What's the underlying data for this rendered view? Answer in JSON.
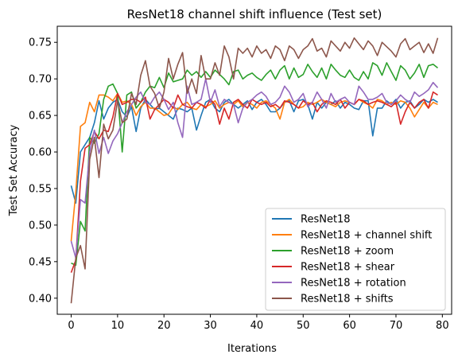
{
  "chart_data": {
    "type": "line",
    "title": "ResNet18 channel shift influence (Test set)",
    "xlabel": "Iterations",
    "ylabel": "Test Set Accuracy",
    "xlim": [
      -3,
      82
    ],
    "ylim": [
      0.378,
      0.772
    ],
    "xticks": [
      0,
      10,
      20,
      30,
      40,
      50,
      60,
      70,
      80
    ],
    "yticks": [
      0.4,
      0.45,
      0.5,
      0.55,
      0.6,
      0.65,
      0.7,
      0.75
    ],
    "grid": false,
    "legend_position": "lower right",
    "x": [
      0,
      1,
      2,
      3,
      4,
      5,
      6,
      7,
      8,
      9,
      10,
      11,
      12,
      13,
      14,
      15,
      16,
      17,
      18,
      19,
      20,
      21,
      22,
      23,
      24,
      25,
      26,
      27,
      28,
      29,
      30,
      31,
      32,
      33,
      34,
      35,
      36,
      37,
      38,
      39,
      40,
      41,
      42,
      43,
      44,
      45,
      46,
      47,
      48,
      49,
      50,
      51,
      52,
      53,
      54,
      55,
      56,
      57,
      58,
      59,
      60,
      61,
      62,
      63,
      64,
      65,
      66,
      67,
      68,
      69,
      70,
      71,
      72,
      73,
      74,
      75,
      76,
      77,
      78,
      79
    ],
    "series": [
      {
        "name": "ResNet18",
        "color": "#1f77b4",
        "values": [
          0.554,
          0.53,
          0.6,
          0.61,
          0.62,
          0.64,
          0.67,
          0.645,
          0.66,
          0.668,
          0.672,
          0.655,
          0.648,
          0.662,
          0.628,
          0.66,
          0.672,
          0.665,
          0.658,
          0.66,
          0.655,
          0.65,
          0.645,
          0.66,
          0.658,
          0.655,
          0.66,
          0.63,
          0.65,
          0.668,
          0.672,
          0.66,
          0.655,
          0.668,
          0.672,
          0.665,
          0.66,
          0.665,
          0.67,
          0.658,
          0.668,
          0.672,
          0.665,
          0.655,
          0.655,
          0.66,
          0.668,
          0.67,
          0.655,
          0.67,
          0.672,
          0.665,
          0.645,
          0.668,
          0.66,
          0.668,
          0.665,
          0.67,
          0.66,
          0.668,
          0.665,
          0.66,
          0.658,
          0.67,
          0.67,
          0.622,
          0.66,
          0.66,
          0.67,
          0.665,
          0.672,
          0.66,
          0.668,
          0.67,
          0.66,
          0.665,
          0.672,
          0.668,
          0.672,
          0.668
        ]
      },
      {
        "name": "ResNet18 + channel shift",
        "color": "#ff7f0e",
        "values": [
          0.478,
          0.545,
          0.635,
          0.64,
          0.668,
          0.655,
          0.678,
          0.678,
          0.675,
          0.67,
          0.68,
          0.668,
          0.67,
          0.665,
          0.65,
          0.662,
          0.668,
          0.66,
          0.66,
          0.655,
          0.65,
          0.652,
          0.662,
          0.658,
          0.665,
          0.668,
          0.66,
          0.658,
          0.665,
          0.662,
          0.665,
          0.67,
          0.66,
          0.665,
          0.668,
          0.665,
          0.67,
          0.662,
          0.668,
          0.665,
          0.66,
          0.668,
          0.67,
          0.665,
          0.66,
          0.645,
          0.668,
          0.672,
          0.665,
          0.66,
          0.662,
          0.668,
          0.665,
          0.668,
          0.672,
          0.668,
          0.665,
          0.662,
          0.668,
          0.67,
          0.668,
          0.665,
          0.672,
          0.668,
          0.665,
          0.66,
          0.672,
          0.67,
          0.665,
          0.668,
          0.665,
          0.67,
          0.668,
          0.66,
          0.648,
          0.658,
          0.668,
          0.66,
          0.668,
          0.665
        ]
      },
      {
        "name": "ResNet18 + zoom",
        "color": "#2ca02c",
        "values": [
          0.448,
          0.445,
          0.505,
          0.492,
          0.62,
          0.612,
          0.625,
          0.672,
          0.69,
          0.693,
          0.68,
          0.6,
          0.678,
          0.682,
          0.66,
          0.668,
          0.682,
          0.69,
          0.688,
          0.702,
          0.688,
          0.708,
          0.696,
          0.698,
          0.7,
          0.712,
          0.705,
          0.71,
          0.702,
          0.71,
          0.702,
          0.712,
          0.706,
          0.7,
          0.692,
          0.71,
          0.712,
          0.7,
          0.705,
          0.708,
          0.702,
          0.698,
          0.706,
          0.712,
          0.7,
          0.712,
          0.718,
          0.7,
          0.715,
          0.702,
          0.706,
          0.72,
          0.71,
          0.702,
          0.715,
          0.7,
          0.72,
          0.712,
          0.705,
          0.702,
          0.712,
          0.702,
          0.698,
          0.71,
          0.7,
          0.722,
          0.718,
          0.705,
          0.722,
          0.71,
          0.698,
          0.718,
          0.712,
          0.7,
          0.708,
          0.72,
          0.702,
          0.718,
          0.72,
          0.715
        ]
      },
      {
        "name": "ResNet18 + shear",
        "color": "#d62728",
        "values": [
          0.435,
          0.452,
          0.56,
          0.605,
          0.61,
          0.628,
          0.618,
          0.63,
          0.628,
          0.648,
          0.68,
          0.665,
          0.668,
          0.672,
          0.672,
          0.668,
          0.675,
          0.645,
          0.658,
          0.665,
          0.672,
          0.668,
          0.66,
          0.678,
          0.665,
          0.662,
          0.66,
          0.668,
          0.665,
          0.66,
          0.672,
          0.665,
          0.638,
          0.66,
          0.645,
          0.668,
          0.672,
          0.665,
          0.66,
          0.672,
          0.668,
          0.665,
          0.668,
          0.662,
          0.665,
          0.66,
          0.67,
          0.668,
          0.665,
          0.66,
          0.67,
          0.665,
          0.668,
          0.655,
          0.665,
          0.67,
          0.668,
          0.665,
          0.672,
          0.66,
          0.668,
          0.665,
          0.672,
          0.67,
          0.665,
          0.668,
          0.67,
          0.668,
          0.665,
          0.662,
          0.668,
          0.638,
          0.655,
          0.668,
          0.66,
          0.668,
          0.672,
          0.66,
          0.682,
          0.678
        ]
      },
      {
        "name": "ResNet18 + rotation",
        "color": "#9467bd",
        "values": [
          0.478,
          0.455,
          0.535,
          0.53,
          0.6,
          0.63,
          0.598,
          0.62,
          0.598,
          0.615,
          0.625,
          0.64,
          0.655,
          0.665,
          0.675,
          0.682,
          0.668,
          0.665,
          0.675,
          0.682,
          0.672,
          0.658,
          0.668,
          0.64,
          0.62,
          0.69,
          0.665,
          0.668,
          0.672,
          0.7,
          0.668,
          0.685,
          0.662,
          0.672,
          0.668,
          0.665,
          0.64,
          0.66,
          0.668,
          0.672,
          0.678,
          0.682,
          0.676,
          0.665,
          0.668,
          0.675,
          0.69,
          0.682,
          0.668,
          0.672,
          0.68,
          0.662,
          0.668,
          0.682,
          0.672,
          0.66,
          0.68,
          0.668,
          0.672,
          0.675,
          0.668,
          0.665,
          0.69,
          0.682,
          0.672,
          0.672,
          0.675,
          0.68,
          0.668,
          0.665,
          0.67,
          0.678,
          0.672,
          0.668,
          0.682,
          0.676,
          0.68,
          0.685,
          0.695,
          0.688
        ]
      },
      {
        "name": "ResNet18 + shifts",
        "color": "#8c564b",
        "values": [
          0.393,
          0.455,
          0.472,
          0.44,
          0.59,
          0.62,
          0.565,
          0.638,
          0.618,
          0.63,
          0.67,
          0.64,
          0.645,
          0.68,
          0.665,
          0.705,
          0.725,
          0.69,
          0.68,
          0.66,
          0.682,
          0.728,
          0.7,
          0.72,
          0.736,
          0.68,
          0.7,
          0.68,
          0.732,
          0.7,
          0.7,
          0.722,
          0.705,
          0.745,
          0.73,
          0.7,
          0.742,
          0.735,
          0.742,
          0.73,
          0.745,
          0.735,
          0.74,
          0.728,
          0.745,
          0.74,
          0.725,
          0.745,
          0.74,
          0.728,
          0.74,
          0.745,
          0.755,
          0.738,
          0.742,
          0.73,
          0.752,
          0.745,
          0.738,
          0.75,
          0.742,
          0.756,
          0.748,
          0.74,
          0.752,
          0.745,
          0.732,
          0.75,
          0.744,
          0.738,
          0.73,
          0.748,
          0.755,
          0.74,
          0.745,
          0.75,
          0.736,
          0.748,
          0.735,
          0.756
        ]
      }
    ]
  }
}
